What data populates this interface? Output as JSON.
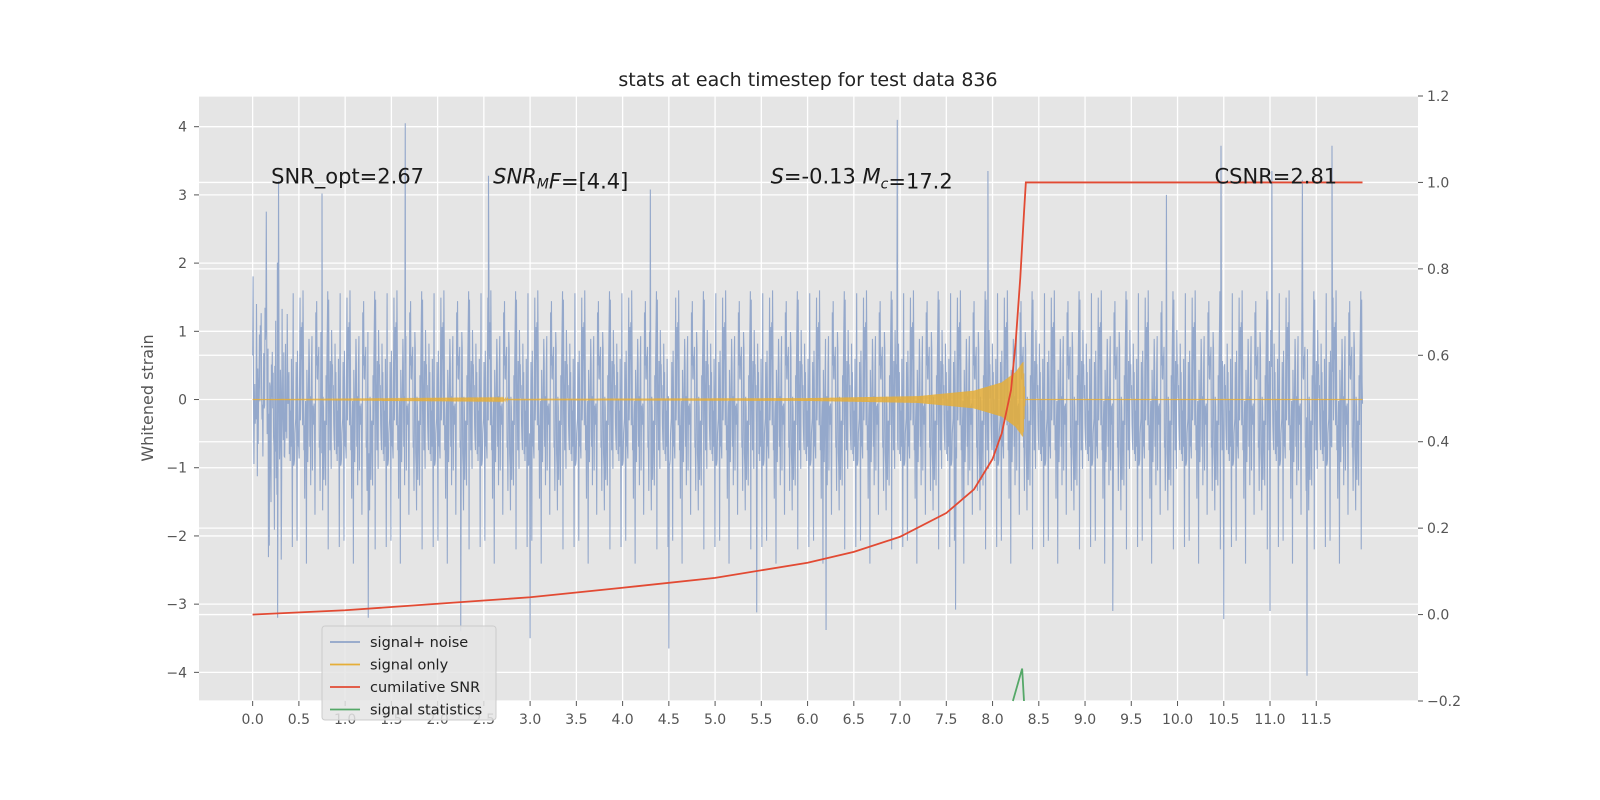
{
  "chart_data": {
    "type": "line",
    "title": "stats at each timestep for test data 836",
    "ylabel": "Whitened strain",
    "xlim": [
      -0.58,
      12.6
    ],
    "ylim": [
      -4.42,
      4.45
    ],
    "y2lim": [
      -0.2,
      1.2
    ],
    "x_ticks": [
      0.0,
      0.5,
      1.0,
      1.5,
      2.0,
      2.5,
      3.0,
      3.5,
      4.0,
      4.5,
      5.0,
      5.5,
      6.0,
      6.5,
      7.0,
      7.5,
      8.0,
      8.5,
      9.0,
      9.5,
      10.0,
      10.5,
      11.0,
      11.5
    ],
    "x_tick_labels": [
      "0.0",
      "0.5",
      "1.0",
      "1.5",
      "2.0",
      "2.5",
      "3.0",
      "3.5",
      "4.0",
      "4.5",
      "5.0",
      "5.5",
      "6.0",
      "6.5",
      "7.0",
      "7.5",
      "8.0",
      "8.5",
      "9.0",
      "9.5",
      "10.0",
      "10.5",
      "11.0",
      "11.5"
    ],
    "y_ticks": [
      -4,
      -3,
      -2,
      -1,
      0,
      1,
      2,
      3,
      4
    ],
    "y_tick_labels": [
      "−4",
      "−3",
      "−2",
      "−1",
      "0",
      "1",
      "2",
      "3",
      "4"
    ],
    "y2_ticks": [
      -0.2,
      0.0,
      0.2,
      0.4,
      0.6,
      0.8,
      1.0,
      1.2
    ],
    "y2_tick_labels": [
      "−0.2",
      "0.0",
      "0.2",
      "0.4",
      "0.6",
      "0.8",
      "1.0",
      "1.2"
    ],
    "grid": true,
    "legend_position": "lower-left",
    "annotations": [
      {
        "x": 0.2,
        "y": 3.2,
        "parts": [
          {
            "text": "SNR_opt=2.67"
          }
        ]
      },
      {
        "x": 2.6,
        "y": 3.2,
        "parts": [
          {
            "text": "SNR",
            "italic": true
          },
          {
            "text": "M",
            "italic": true,
            "sub": true
          },
          {
            "text": "F",
            "italic": true
          },
          {
            "text": "=[4.4]"
          }
        ]
      },
      {
        "x": 5.6,
        "y": 3.2,
        "parts": [
          {
            "text": "S",
            "italic": true
          },
          {
            "text": "=-0.13  "
          },
          {
            "text": "M",
            "italic": true
          },
          {
            "text": "c",
            "italic": true,
            "sub": true
          },
          {
            "text": "=17.2"
          }
        ]
      },
      {
        "x": 10.4,
        "y": 3.2,
        "parts": [
          {
            "text": "CSNR=2.81"
          }
        ]
      }
    ],
    "series": [
      {
        "name": "signal+ noise",
        "axis": "left",
        "color": "#8fa4c9",
        "kind": "noise",
        "x_range": [
          0.0,
          12.0
        ],
        "envelope_typical": [
          -1.8,
          1.8
        ],
        "spikes": [
          {
            "x": 1.65,
            "y": 4.05
          },
          {
            "x": 6.97,
            "y": 4.1
          },
          {
            "x": 10.47,
            "y": 3.72
          },
          {
            "x": 11.67,
            "y": 3.72
          },
          {
            "x": 0.28,
            "y": 3.2
          },
          {
            "x": 0.75,
            "y": 3.02
          },
          {
            "x": 2.55,
            "y": 3.28
          },
          {
            "x": 7.95,
            "y": 3.35
          },
          {
            "x": 11.02,
            "y": 3.35
          },
          {
            "x": 4.3,
            "y": 3.08
          },
          {
            "x": 11.35,
            "y": 3.22
          },
          {
            "x": 9.88,
            "y": 3.0
          },
          {
            "x": 11.4,
            "y": -4.05
          },
          {
            "x": 4.5,
            "y": -3.65
          },
          {
            "x": 3.0,
            "y": -3.5
          },
          {
            "x": 6.2,
            "y": -3.38
          },
          {
            "x": 10.5,
            "y": -3.22
          },
          {
            "x": 0.27,
            "y": -3.2
          },
          {
            "x": 1.25,
            "y": -3.2
          },
          {
            "x": 2.25,
            "y": -3.4
          },
          {
            "x": 7.6,
            "y": -3.08
          },
          {
            "x": 9.3,
            "y": -3.1
          },
          {
            "x": 5.45,
            "y": -3.12
          },
          {
            "x": 11.0,
            "y": -3.1
          }
        ]
      },
      {
        "name": "signal only",
        "axis": "left",
        "color": "#e5ae38",
        "kind": "chirp",
        "x_range": [
          0.0,
          8.35
        ],
        "amplitude_points": [
          [
            0.0,
            0.0
          ],
          [
            6.0,
            0.02
          ],
          [
            7.2,
            0.05
          ],
          [
            7.8,
            0.13
          ],
          [
            8.1,
            0.25
          ],
          [
            8.25,
            0.4
          ],
          [
            8.33,
            0.55
          ],
          [
            8.35,
            0.0
          ]
        ]
      },
      {
        "name": "cumilative SNR",
        "axis": "right",
        "color": "#e24a33",
        "points": [
          [
            0.0,
            0.0
          ],
          [
            1.0,
            0.01
          ],
          [
            2.0,
            0.025
          ],
          [
            3.0,
            0.04
          ],
          [
            4.0,
            0.062
          ],
          [
            5.0,
            0.085
          ],
          [
            6.0,
            0.12
          ],
          [
            6.5,
            0.145
          ],
          [
            7.0,
            0.18
          ],
          [
            7.5,
            0.235
          ],
          [
            7.8,
            0.29
          ],
          [
            8.0,
            0.36
          ],
          [
            8.1,
            0.42
          ],
          [
            8.2,
            0.52
          ],
          [
            8.25,
            0.63
          ],
          [
            8.3,
            0.78
          ],
          [
            8.34,
            0.93
          ],
          [
            8.36,
            1.0
          ],
          [
            12.0,
            1.0
          ]
        ]
      },
      {
        "name": "signal statistics",
        "axis": "right",
        "color": "#55a868",
        "points": [
          [
            8.22,
            -0.2
          ],
          [
            8.32,
            -0.125
          ],
          [
            8.34,
            -0.2
          ]
        ]
      }
    ]
  }
}
